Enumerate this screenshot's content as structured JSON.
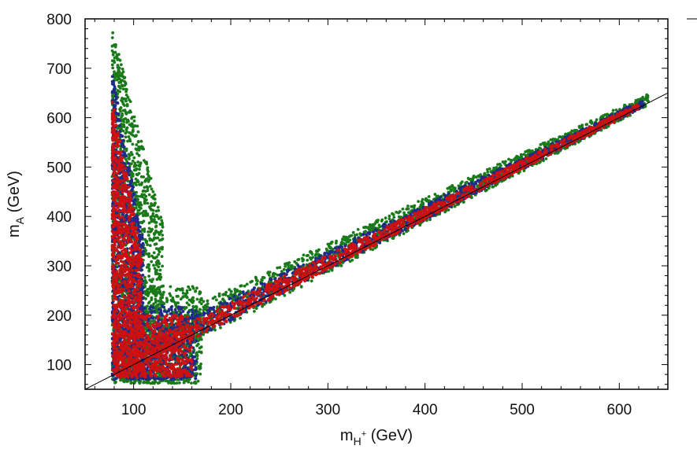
{
  "chart_data": {
    "type": "scatter",
    "title": "",
    "xlabel": {
      "base": "m",
      "sub": "H",
      "sup": "+",
      "unit": " (GeV)"
    },
    "ylabel": {
      "base": "m",
      "sub": "A",
      "unit": " (GeV)"
    },
    "xlim": [
      50,
      650
    ],
    "ylim": [
      50,
      800
    ],
    "x_ticks": [
      100,
      200,
      300,
      400,
      500,
      600
    ],
    "y_ticks": [
      100,
      200,
      300,
      400,
      500,
      600,
      700,
      800
    ],
    "grid": false,
    "legend": "none",
    "reference_line": {
      "slope": 1,
      "intercept": 0,
      "color": "#000000"
    },
    "series": [
      {
        "color": "#1a7a1a",
        "regions": [
          {
            "shape": "column",
            "x": [
              78,
              130
            ],
            "y": [
              65,
              780
            ]
          },
          {
            "shape": "band",
            "x": [
              130,
              630
            ],
            "y_offset": [
              -20,
              60
            ]
          },
          {
            "shape": "block",
            "x": [
              78,
              170
            ],
            "y": [
              62,
              260
            ]
          }
        ]
      },
      {
        "color": "#1f2a8a",
        "regions": [
          {
            "shape": "column",
            "x": [
              78,
              110
            ],
            "y": [
              70,
              690
            ]
          },
          {
            "shape": "band",
            "x": [
              110,
              625
            ],
            "y_offset": [
              -12,
              40
            ]
          },
          {
            "shape": "block",
            "x": [
              78,
              165
            ],
            "y": [
              70,
              220
            ]
          }
        ]
      },
      {
        "color": "#cc1111",
        "regions": [
          {
            "shape": "column",
            "x": [
              78,
              108
            ],
            "y": [
              70,
              640
            ]
          },
          {
            "shape": "band",
            "x": [
              110,
              620
            ],
            "y_offset": [
              -10,
              30
            ]
          },
          {
            "shape": "block",
            "x": [
              80,
              160
            ],
            "y": [
              75,
              200
            ]
          }
        ]
      }
    ]
  }
}
